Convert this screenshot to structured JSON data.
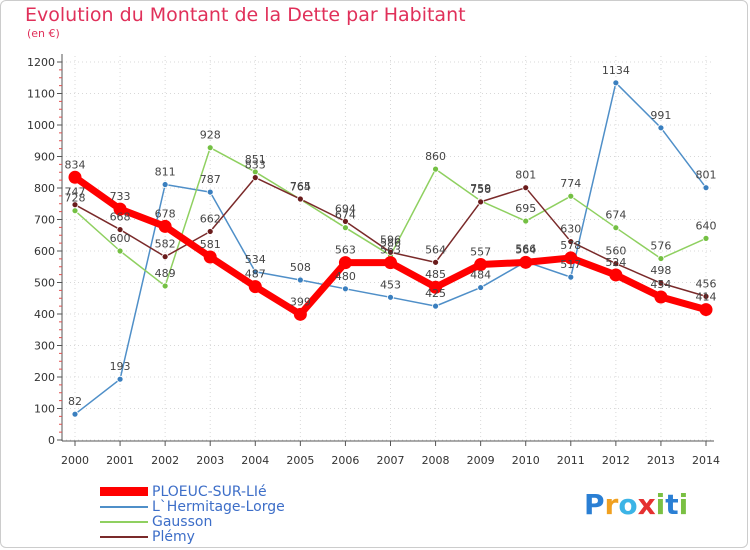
{
  "header": {
    "title": "Evolution du Montant de la Dette par Habitant",
    "subtitle": "(en €)"
  },
  "logo": {
    "letters": [
      "P",
      "r",
      "o",
      "x",
      "i",
      "t",
      "i"
    ],
    "colors": [
      "#2a7fd4",
      "#f0a020",
      "#3cb4e6",
      "#e53030",
      "#7ac043",
      "#2a7fd4",
      "#7ac043"
    ]
  },
  "chart_data": {
    "type": "line",
    "title": "Evolution du Montant de la Dette par Habitant",
    "subtitle": "(en €)",
    "xlabel": "",
    "ylabel": "",
    "ylim": [
      0,
      1200
    ],
    "yticks": [
      0,
      100,
      200,
      300,
      400,
      500,
      600,
      700,
      800,
      900,
      1000,
      1100,
      1200
    ],
    "grid": true,
    "legend_position": "bottom-left",
    "categories": [
      "2000",
      "2001",
      "2002",
      "2003",
      "2004",
      "2005",
      "2006",
      "2007",
      "2008",
      "2009",
      "2010",
      "2011",
      "2012",
      "2013",
      "2014"
    ],
    "series": [
      {
        "name": "L`Hermitage-Lorge",
        "color": "#4f8fc8",
        "marker": "#3a7fbf",
        "values": [
          82,
          193,
          811,
          787,
          534,
          508,
          480,
          453,
          425,
          484,
          566,
          517,
          1134,
          991,
          801
        ]
      },
      {
        "name": "Gausson",
        "color": "#8fd060",
        "marker": "#74c043",
        "values": [
          728,
          600,
          489,
          928,
          851,
          764,
          674,
          586,
          860,
          759,
          695,
          774,
          674,
          576,
          640
        ]
      },
      {
        "name": "Plémy",
        "color": "#7a2a2a",
        "marker": "#6a1c1c",
        "values": [
          747,
          668,
          582,
          662,
          833,
          765,
          694,
          596,
          564,
          756,
          801,
          630,
          560,
          498,
          456
        ]
      },
      {
        "name": "PLOEUC-SUR-LIé",
        "color": "#ff0000",
        "marker": "#ff0000",
        "values": [
          834,
          733,
          678,
          581,
          487,
          399,
          563,
          563,
          485,
          557,
          564,
          578,
          524,
          454,
          414
        ]
      }
    ],
    "legend_order": [
      "PLOEUC-SUR-LIé",
      "L`Hermitage-Lorge",
      "Gausson",
      "Plémy"
    ]
  }
}
